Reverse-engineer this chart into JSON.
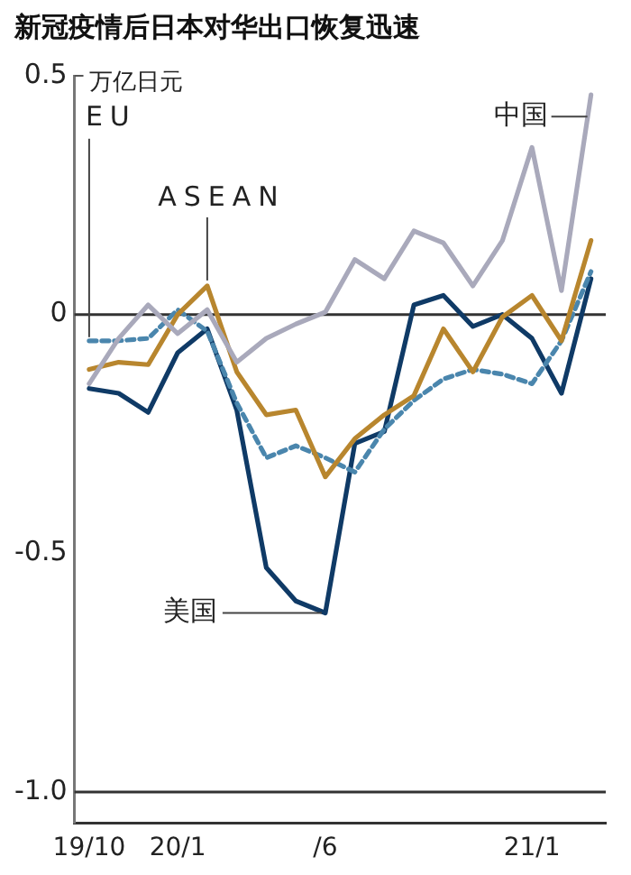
{
  "chart_data": {
    "type": "line",
    "title": "新冠疫情后日本对华出口恢复迅速",
    "ylabel": "万亿日元",
    "categories": [
      "19/10",
      null,
      null,
      "20/1",
      null,
      null,
      null,
      null,
      "/6",
      null,
      null,
      null,
      null,
      null,
      null,
      "21/1",
      null,
      null
    ],
    "series": [
      {
        "name": "中国",
        "color": "#a9a9bb",
        "values": [
          -0.145,
          -0.05,
          0.02,
          -0.04,
          0.01,
          -0.1,
          -0.05,
          -0.02,
          0.005,
          0.115,
          0.075,
          0.175,
          0.15,
          0.06,
          0.155,
          0.35,
          0.05,
          0.46
        ]
      },
      {
        "name": "ASEAN",
        "color": "#b8862e",
        "values": [
          -0.115,
          -0.1,
          -0.105,
          0,
          0.06,
          -0.12,
          -0.21,
          -0.2,
          -0.34,
          -0.26,
          -0.21,
          -0.17,
          -0.03,
          -0.12,
          -0.005,
          0.04,
          -0.055,
          0.155
        ]
      },
      {
        "name": "EU",
        "color": "#4a86ad",
        "line_style": "dashed",
        "values": [
          -0.055,
          -0.055,
          -0.05,
          0.01,
          -0.035,
          -0.185,
          -0.3,
          -0.275,
          -0.3,
          -0.33,
          -0.24,
          -0.18,
          -0.135,
          -0.115,
          -0.125,
          -0.145,
          -0.055,
          0.09
        ]
      },
      {
        "name": "美国",
        "color": "#0f3a66",
        "values": [
          -0.155,
          -0.165,
          -0.205,
          -0.08,
          -0.03,
          -0.2,
          -0.53,
          -0.6,
          -0.625,
          -0.27,
          -0.245,
          0.02,
          0.04,
          -0.025,
          0,
          -0.05,
          -0.165,
          0.075
        ]
      }
    ],
    "ylim": [
      -1.065,
      0.5
    ],
    "yticks": [
      0.5,
      0,
      -0.5,
      {
        "value": -1,
        "label": "-1.0"
      }
    ],
    "ref_lines": [
      {
        "axis": "y",
        "value": 0,
        "color": "#333333"
      },
      {
        "axis": "y",
        "value": -1,
        "color": "#333333"
      }
    ],
    "grid": false,
    "legend": false,
    "marker": "none"
  }
}
